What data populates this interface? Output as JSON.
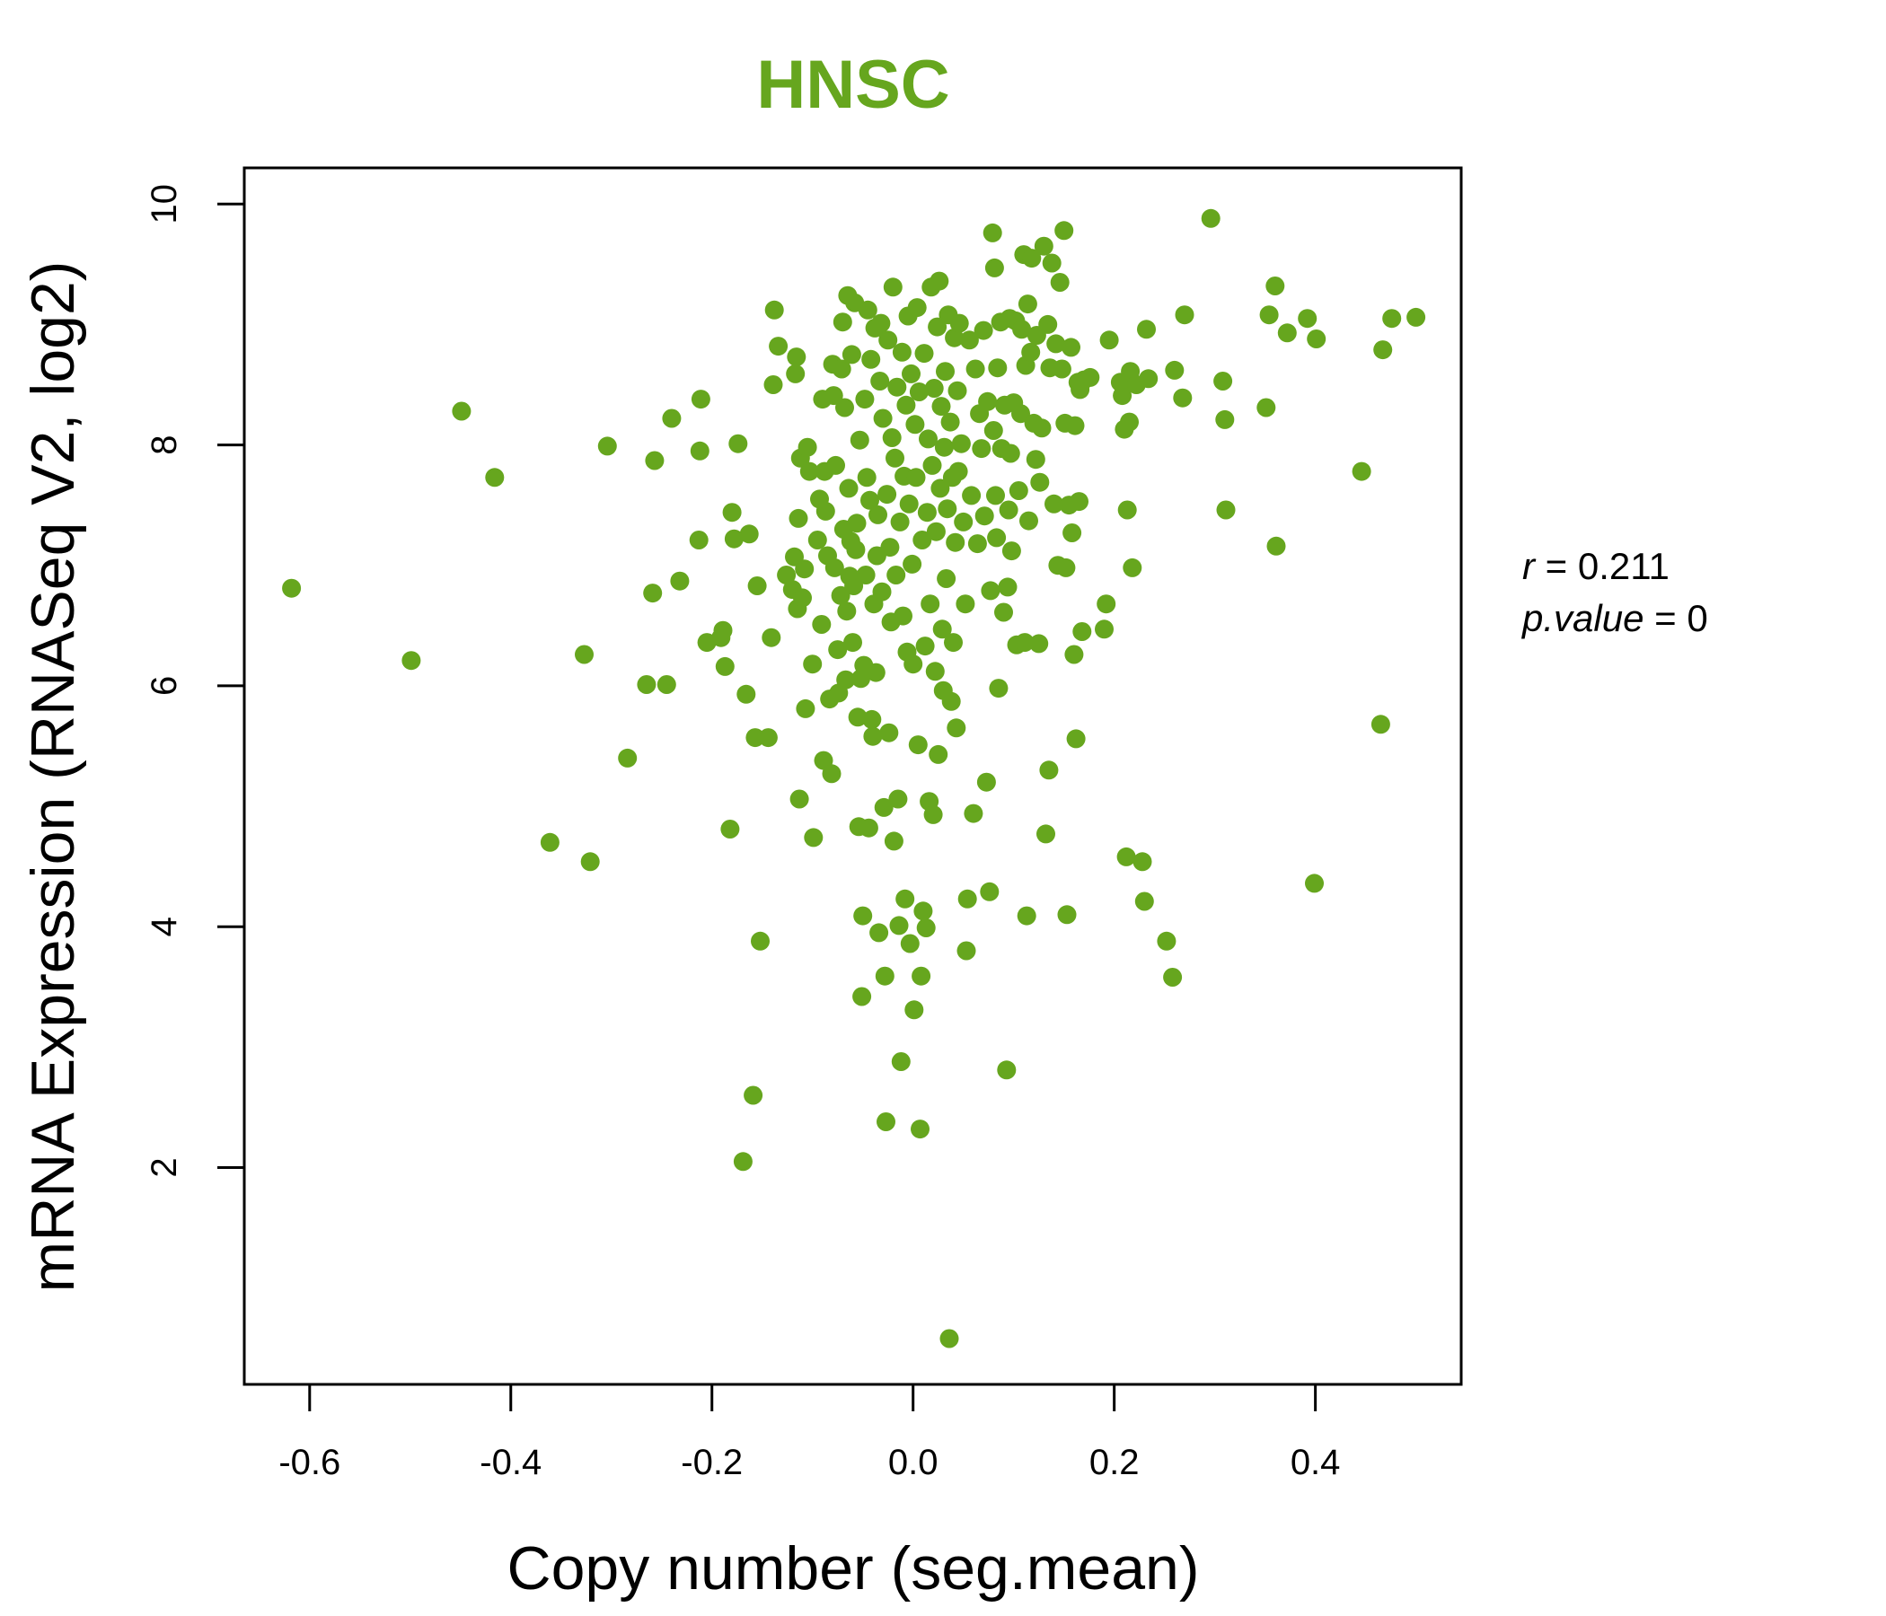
{
  "chart_data": {
    "type": "scatter",
    "title": "HNSC",
    "title_color": "#66a61e",
    "point_color": "#66a61e",
    "xlabel": "Copy number (seg.mean)",
    "ylabel": "mRNA Expression (RNASeq V2, log2)",
    "xlim": [
      -0.665,
      0.545
    ],
    "ylim": [
      0.2,
      10.3
    ],
    "x_ticks": [
      -0.6,
      -0.4,
      -0.2,
      0.0,
      0.2,
      0.4
    ],
    "x_tick_labels": [
      "-0.6",
      "-0.4",
      "-0.2",
      "0.0",
      "0.2",
      "0.4"
    ],
    "y_ticks": [
      2,
      4,
      6,
      8,
      10
    ],
    "y_tick_labels": [
      "2",
      "4",
      "6",
      "8",
      "10"
    ],
    "grid": false,
    "stats": {
      "r_label": "r",
      "r_value": "0.211",
      "p_label": "p.value",
      "p_value": "0"
    },
    "points": [
      [
        -0.618,
        6.81
      ],
      [
        -0.499,
        6.21
      ],
      [
        -0.449,
        8.28
      ],
      [
        -0.416,
        7.73
      ],
      [
        -0.361,
        4.7
      ],
      [
        -0.327,
        6.26
      ],
      [
        -0.321,
        4.54
      ],
      [
        -0.304,
        7.99
      ],
      [
        -0.284,
        5.4
      ],
      [
        -0.265,
        6.01
      ],
      [
        -0.259,
        6.77
      ],
      [
        -0.257,
        7.87
      ],
      [
        -0.245,
        6.01
      ],
      [
        -0.24,
        8.22
      ],
      [
        -0.232,
        6.87
      ],
      [
        -0.213,
        7.21
      ],
      [
        -0.212,
        7.95
      ],
      [
        -0.211,
        8.38
      ],
      [
        -0.205,
        6.36
      ],
      [
        -0.191,
        6.4
      ],
      [
        -0.189,
        6.46
      ],
      [
        -0.187,
        6.16
      ],
      [
        -0.182,
        4.81
      ],
      [
        -0.18,
        7.44
      ],
      [
        -0.178,
        7.22
      ],
      [
        -0.174,
        8.01
      ],
      [
        -0.169,
        2.05
      ],
      [
        -0.166,
        5.93
      ],
      [
        -0.163,
        7.26
      ],
      [
        -0.159,
        2.6
      ],
      [
        -0.157,
        5.57
      ],
      [
        -0.155,
        6.83
      ],
      [
        -0.152,
        3.88
      ],
      [
        -0.144,
        5.57
      ],
      [
        -0.141,
        6.4
      ],
      [
        -0.139,
        8.5
      ],
      [
        -0.138,
        9.12
      ],
      [
        -0.134,
        8.82
      ],
      [
        -0.126,
        6.92
      ],
      [
        -0.12,
        6.8
      ],
      [
        -0.118,
        7.07
      ],
      [
        -0.117,
        8.59
      ],
      [
        -0.116,
        8.73
      ],
      [
        -0.115,
        6.64
      ],
      [
        -0.114,
        7.39
      ],
      [
        -0.113,
        5.06
      ],
      [
        -0.112,
        7.89
      ],
      [
        -0.11,
        6.73
      ],
      [
        -0.108,
        6.97
      ],
      [
        -0.107,
        5.81
      ],
      [
        -0.105,
        7.98
      ],
      [
        -0.103,
        7.78
      ],
      [
        -0.1,
        6.18
      ],
      [
        -0.099,
        4.74
      ],
      [
        -0.095,
        7.21
      ],
      [
        -0.093,
        7.55
      ],
      [
        -0.091,
        6.51
      ],
      [
        -0.09,
        8.38
      ],
      [
        -0.089,
        5.38
      ],
      [
        -0.088,
        7.78
      ],
      [
        -0.087,
        7.45
      ],
      [
        -0.085,
        7.08
      ],
      [
        -0.083,
        5.89
      ],
      [
        -0.081,
        5.27
      ],
      [
        -0.08,
        8.67
      ],
      [
        -0.079,
        8.41
      ],
      [
        -0.078,
        6.98
      ],
      [
        -0.077,
        7.83
      ],
      [
        -0.075,
        6.3
      ],
      [
        -0.074,
        5.94
      ],
      [
        -0.072,
        6.75
      ],
      [
        -0.071,
        8.63
      ],
      [
        -0.07,
        9.02
      ],
      [
        -0.069,
        7.3
      ],
      [
        -0.068,
        8.31
      ],
      [
        -0.067,
        6.05
      ],
      [
        -0.066,
        6.62
      ],
      [
        -0.065,
        9.24
      ],
      [
        -0.064,
        7.64
      ],
      [
        -0.063,
        6.91
      ],
      [
        -0.062,
        7.2
      ],
      [
        -0.061,
        8.75
      ],
      [
        -0.06,
        6.36
      ],
      [
        -0.059,
        6.83
      ],
      [
        -0.058,
        9.18
      ],
      [
        -0.057,
        7.13
      ],
      [
        -0.056,
        7.35
      ],
      [
        -0.055,
        5.74
      ],
      [
        -0.054,
        4.83
      ],
      [
        -0.053,
        8.04
      ],
      [
        -0.052,
        6.06
      ],
      [
        -0.051,
        3.42
      ],
      [
        -0.05,
        4.09
      ],
      [
        -0.049,
        6.17
      ],
      [
        -0.048,
        8.38
      ],
      [
        -0.047,
        6.92
      ],
      [
        -0.046,
        7.73
      ],
      [
        -0.045,
        9.12
      ],
      [
        -0.044,
        4.82
      ],
      [
        -0.043,
        7.54
      ],
      [
        -0.042,
        8.71
      ],
      [
        -0.041,
        5.72
      ],
      [
        -0.04,
        5.58
      ],
      [
        -0.039,
        6.68
      ],
      [
        -0.038,
        8.97
      ],
      [
        -0.037,
        6.11
      ],
      [
        -0.036,
        7.08
      ],
      [
        -0.035,
        7.42
      ],
      [
        -0.034,
        3.95
      ],
      [
        -0.033,
        8.53
      ],
      [
        -0.032,
        9.01
      ],
      [
        -0.031,
        6.78
      ],
      [
        -0.03,
        8.22
      ],
      [
        -0.029,
        4.99
      ],
      [
        -0.028,
        3.59
      ],
      [
        -0.027,
        2.38
      ],
      [
        -0.026,
        7.59
      ],
      [
        -0.025,
        8.87
      ],
      [
        -0.024,
        5.61
      ],
      [
        -0.023,
        7.15
      ],
      [
        -0.022,
        6.53
      ],
      [
        -0.021,
        8.06
      ],
      [
        -0.02,
        9.31
      ],
      [
        -0.019,
        4.71
      ],
      [
        -0.018,
        7.89
      ],
      [
        -0.017,
        6.92
      ],
      [
        -0.016,
        8.48
      ],
      [
        -0.015,
        5.06
      ],
      [
        -0.014,
        4.01
      ],
      [
        -0.013,
        7.36
      ],
      [
        -0.012,
        2.88
      ],
      [
        -0.011,
        8.77
      ],
      [
        -0.01,
        6.58
      ],
      [
        -0.009,
        7.74
      ],
      [
        -0.008,
        4.23
      ],
      [
        -0.007,
        8.33
      ],
      [
        -0.006,
        6.28
      ],
      [
        -0.005,
        9.07
      ],
      [
        -0.004,
        7.51
      ],
      [
        -0.003,
        3.86
      ],
      [
        -0.002,
        8.59
      ],
      [
        -0.001,
        7.01
      ],
      [
        0.0,
        6.18
      ],
      [
        0.001,
        3.31
      ],
      [
        0.002,
        8.17
      ],
      [
        0.003,
        7.73
      ],
      [
        0.004,
        9.14
      ],
      [
        0.005,
        5.51
      ],
      [
        0.006,
        8.44
      ],
      [
        0.007,
        2.32
      ],
      [
        0.008,
        3.59
      ],
      [
        0.009,
        7.21
      ],
      [
        0.01,
        4.13
      ],
      [
        0.011,
        8.76
      ],
      [
        0.012,
        6.33
      ],
      [
        0.013,
        3.99
      ],
      [
        0.014,
        7.44
      ],
      [
        0.015,
        8.05
      ],
      [
        0.016,
        5.04
      ],
      [
        0.017,
        6.68
      ],
      [
        0.018,
        9.31
      ],
      [
        0.019,
        7.83
      ],
      [
        0.02,
        4.93
      ],
      [
        0.021,
        8.47
      ],
      [
        0.022,
        6.12
      ],
      [
        0.023,
        7.28
      ],
      [
        0.024,
        8.98
      ],
      [
        0.025,
        5.43
      ],
      [
        0.026,
        9.36
      ],
      [
        0.027,
        7.64
      ],
      [
        0.028,
        8.32
      ],
      [
        0.029,
        6.47
      ],
      [
        0.03,
        5.96
      ],
      [
        0.031,
        7.98
      ],
      [
        0.032,
        8.61
      ],
      [
        0.033,
        6.89
      ],
      [
        0.034,
        7.47
      ],
      [
        0.035,
        9.08
      ],
      [
        0.036,
        0.58
      ],
      [
        0.037,
        8.19
      ],
      [
        0.038,
        5.87
      ],
      [
        0.039,
        7.73
      ],
      [
        0.04,
        6.36
      ],
      [
        0.041,
        8.89
      ],
      [
        0.042,
        7.19
      ],
      [
        0.043,
        5.65
      ],
      [
        0.044,
        8.45
      ],
      [
        0.045,
        7.78
      ],
      [
        0.046,
        9.01
      ],
      [
        0.048,
        8.01
      ],
      [
        0.05,
        7.36
      ],
      [
        0.052,
        6.68
      ],
      [
        0.053,
        3.8
      ],
      [
        0.054,
        4.23
      ],
      [
        0.056,
        8.87
      ],
      [
        0.058,
        7.58
      ],
      [
        0.06,
        4.94
      ],
      [
        0.062,
        8.63
      ],
      [
        0.064,
        7.18
      ],
      [
        0.066,
        8.26
      ],
      [
        0.068,
        7.97
      ],
      [
        0.07,
        8.95
      ],
      [
        0.071,
        7.41
      ],
      [
        0.073,
        5.2
      ],
      [
        0.074,
        8.36
      ],
      [
        0.076,
        4.29
      ],
      [
        0.077,
        6.79
      ],
      [
        0.079,
        9.76
      ],
      [
        0.08,
        8.12
      ],
      [
        0.081,
        9.47
      ],
      [
        0.082,
        7.58
      ],
      [
        0.083,
        7.23
      ],
      [
        0.084,
        8.64
      ],
      [
        0.085,
        5.98
      ],
      [
        0.087,
        9.02
      ],
      [
        0.088,
        7.97
      ],
      [
        0.09,
        6.61
      ],
      [
        0.091,
        8.33
      ],
      [
        0.093,
        2.81
      ],
      [
        0.094,
        6.82
      ],
      [
        0.095,
        7.46
      ],
      [
        0.096,
        9.05
      ],
      [
        0.097,
        7.93
      ],
      [
        0.098,
        7.12
      ],
      [
        0.1,
        8.35
      ],
      [
        0.102,
        9.03
      ],
      [
        0.103,
        6.34
      ],
      [
        0.105,
        7.62
      ],
      [
        0.107,
        8.26
      ],
      [
        0.108,
        8.96
      ],
      [
        0.11,
        9.58
      ],
      [
        0.111,
        6.36
      ],
      [
        0.112,
        8.66
      ],
      [
        0.113,
        4.09
      ],
      [
        0.114,
        9.17
      ],
      [
        0.115,
        7.37
      ],
      [
        0.117,
        8.77
      ],
      [
        0.118,
        9.55
      ],
      [
        0.12,
        8.18
      ],
      [
        0.122,
        7.88
      ],
      [
        0.123,
        8.91
      ],
      [
        0.125,
        6.35
      ],
      [
        0.126,
        7.69
      ],
      [
        0.128,
        8.14
      ],
      [
        0.13,
        9.65
      ],
      [
        0.132,
        4.77
      ],
      [
        0.134,
        9.0
      ],
      [
        0.135,
        5.3
      ],
      [
        0.136,
        8.64
      ],
      [
        0.138,
        9.51
      ],
      [
        0.14,
        7.51
      ],
      [
        0.142,
        8.84
      ],
      [
        0.144,
        7.0
      ],
      [
        0.146,
        9.35
      ],
      [
        0.148,
        8.63
      ],
      [
        0.15,
        9.78
      ],
      [
        0.151,
        8.18
      ],
      [
        0.152,
        6.98
      ],
      [
        0.153,
        4.1
      ],
      [
        0.155,
        7.5
      ],
      [
        0.157,
        8.81
      ],
      [
        0.158,
        7.27
      ],
      [
        0.16,
        6.26
      ],
      [
        0.161,
        8.16
      ],
      [
        0.162,
        5.56
      ],
      [
        0.164,
        8.52
      ],
      [
        0.165,
        7.53
      ],
      [
        0.166,
        8.46
      ],
      [
        0.168,
        6.45
      ],
      [
        0.17,
        8.54
      ],
      [
        0.176,
        8.56
      ],
      [
        0.19,
        6.47
      ],
      [
        0.192,
        6.68
      ],
      [
        0.195,
        8.87
      ],
      [
        0.206,
        8.52
      ],
      [
        0.208,
        8.41
      ],
      [
        0.21,
        8.13
      ],
      [
        0.212,
        4.58
      ],
      [
        0.213,
        7.46
      ],
      [
        0.215,
        8.19
      ],
      [
        0.216,
        8.61
      ],
      [
        0.218,
        6.98
      ],
      [
        0.222,
        8.5
      ],
      [
        0.228,
        4.54
      ],
      [
        0.23,
        4.21
      ],
      [
        0.232,
        8.96
      ],
      [
        0.234,
        8.55
      ],
      [
        0.252,
        3.88
      ],
      [
        0.258,
        3.58
      ],
      [
        0.26,
        8.62
      ],
      [
        0.268,
        8.39
      ],
      [
        0.27,
        9.08
      ],
      [
        0.296,
        9.88
      ],
      [
        0.308,
        8.53
      ],
      [
        0.31,
        8.21
      ],
      [
        0.311,
        7.46
      ],
      [
        0.351,
        8.31
      ],
      [
        0.354,
        9.08
      ],
      [
        0.36,
        9.32
      ],
      [
        0.361,
        7.16
      ],
      [
        0.372,
        8.93
      ],
      [
        0.392,
        9.05
      ],
      [
        0.399,
        4.36
      ],
      [
        0.401,
        8.88
      ],
      [
        0.446,
        7.78
      ],
      [
        0.465,
        5.68
      ],
      [
        0.467,
        8.79
      ],
      [
        0.476,
        9.05
      ],
      [
        0.5,
        9.06
      ]
    ]
  }
}
